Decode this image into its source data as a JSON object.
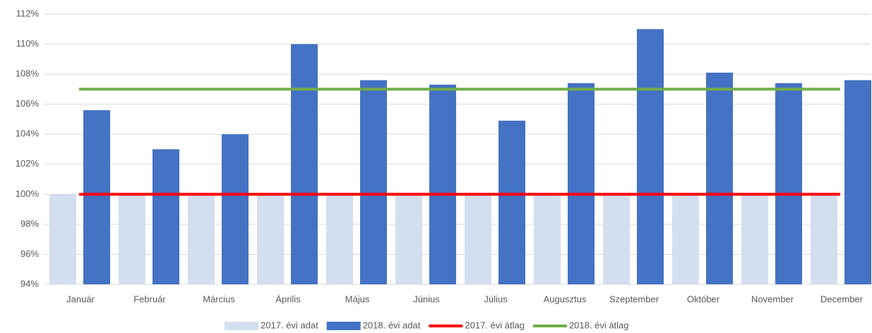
{
  "chart_data": {
    "type": "bar",
    "categories": [
      "Január",
      "Február",
      "Március",
      "Április",
      "Május",
      "Június",
      "Július",
      "Augusztus",
      "Szeptember",
      "Október",
      "November",
      "December"
    ],
    "series": [
      {
        "name": "2017. évi adat",
        "type": "bar",
        "color": "#d3deef",
        "values": [
          100,
          100,
          100,
          100,
          100,
          100,
          100,
          100,
          100,
          100,
          100,
          100
        ]
      },
      {
        "name": "2018. évi adat",
        "type": "bar",
        "color": "#4472c4",
        "values": [
          105.6,
          103.0,
          104.0,
          110.0,
          107.6,
          107.3,
          104.9,
          107.4,
          111.0,
          108.1,
          107.4,
          107.6
        ]
      },
      {
        "name": "2017. évi átlag",
        "type": "line",
        "color": "#ff0000",
        "values": [
          100,
          100,
          100,
          100,
          100,
          100,
          100,
          100,
          100,
          100,
          100,
          100
        ]
      },
      {
        "name": "2018. évi átlag",
        "type": "line",
        "color": "#70ad47",
        "values": [
          107,
          107,
          107,
          107,
          107,
          107,
          107,
          107,
          107,
          107,
          107,
          107
        ]
      }
    ],
    "ylim": [
      94,
      112
    ],
    "yticks": [
      {
        "value": 94,
        "label": "94%"
      },
      {
        "value": 96,
        "label": "96%"
      },
      {
        "value": 98,
        "label": "98%"
      },
      {
        "value": 100,
        "label": "100%"
      },
      {
        "value": 102,
        "label": "102%"
      },
      {
        "value": 104,
        "label": "104%"
      },
      {
        "value": 106,
        "label": "106%"
      },
      {
        "value": 108,
        "label": "108%"
      },
      {
        "value": 110,
        "label": "110%"
      },
      {
        "value": 112,
        "label": "112%"
      }
    ],
    "grid": true,
    "legend": "bottom"
  }
}
